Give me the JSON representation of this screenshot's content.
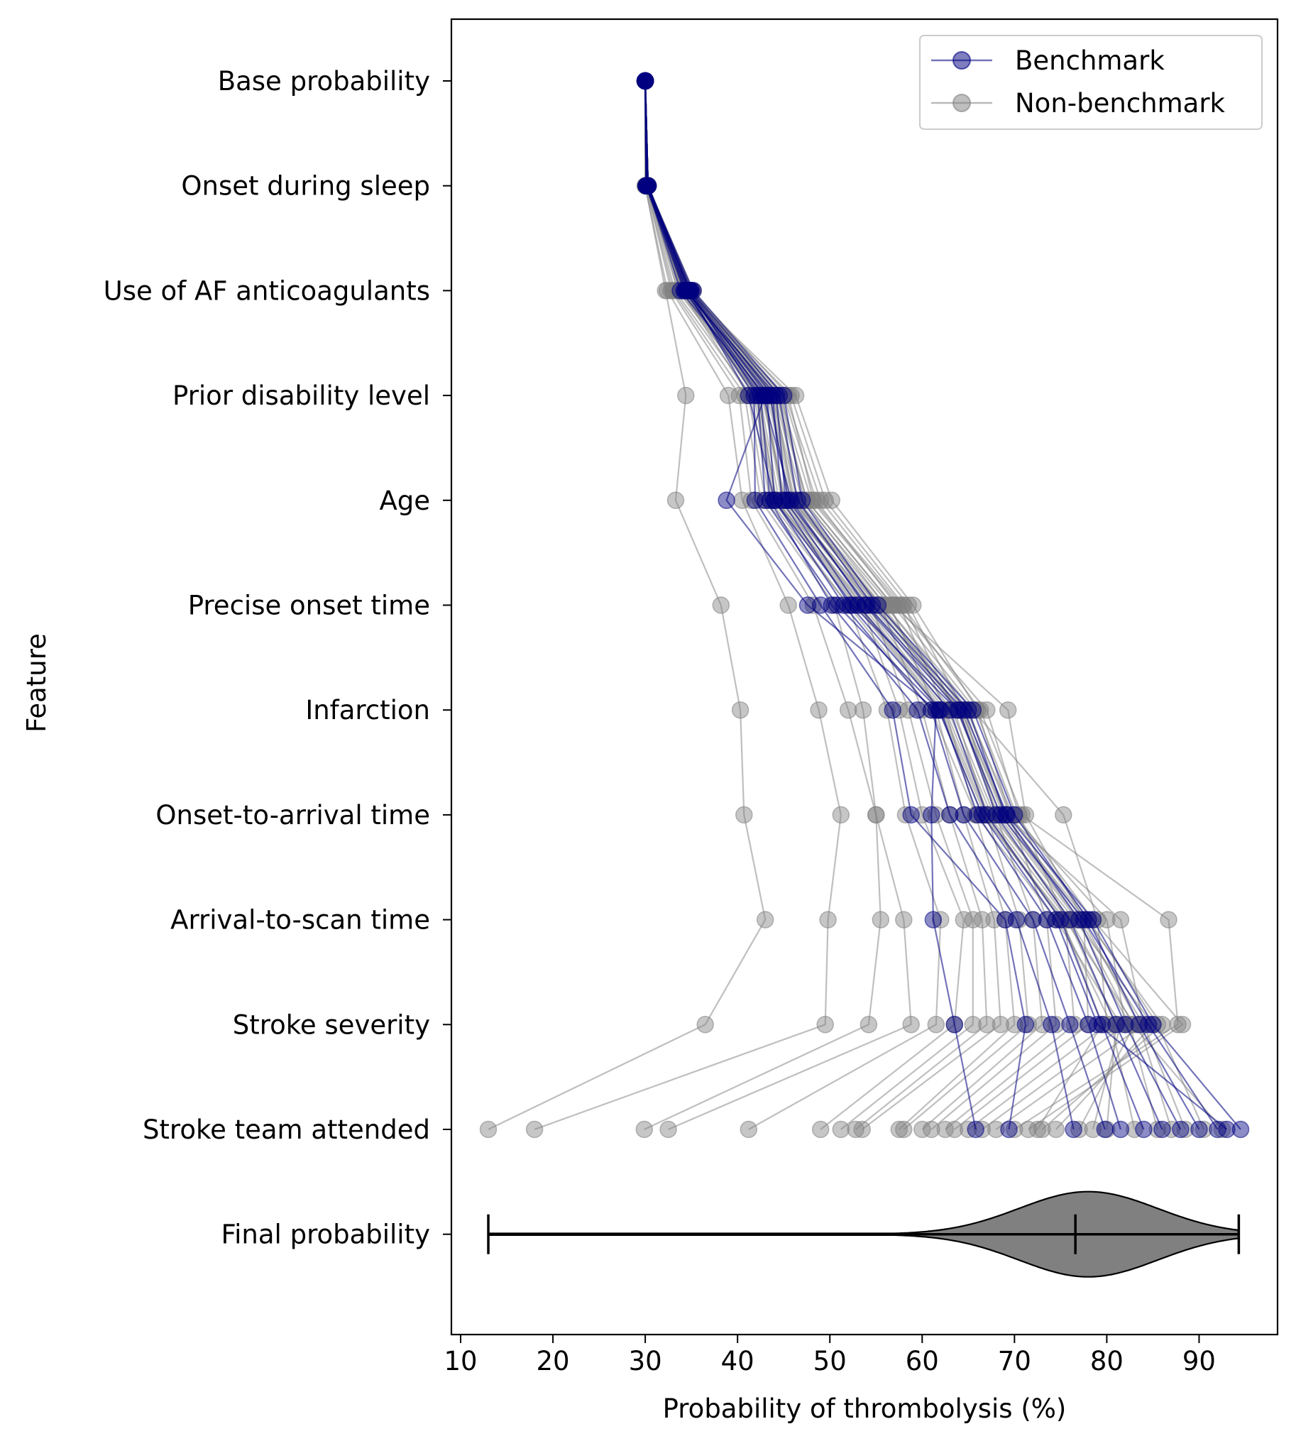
{
  "chart_data": {
    "type": "line",
    "title": "",
    "xlabel": "Probability of thrombolysis (%)",
    "ylabel": "Feature",
    "xlim": [
      9,
      98.5
    ],
    "xticks": [
      10,
      20,
      30,
      40,
      50,
      60,
      70,
      80,
      90
    ],
    "grid": false,
    "legend_position": "top-right",
    "categories": [
      "Base probability",
      "Onset during sleep",
      "Use of AF anticoagulants",
      "Prior disability level",
      "Age",
      "Precise onset time",
      "Infarction",
      "Onset-to-arrival time",
      "Arrival-to-scan time",
      "Stroke severity",
      "Stroke team attended",
      "Final probability"
    ],
    "series": [
      {
        "name": "Benchmark",
        "color": "#000080",
        "marker": "circle",
        "paths": [
          [
            30.0,
            30.2,
            33.8,
            43.0,
            38.8,
            47.6,
            61.5,
            61.0,
            61.2,
            63.5,
            65.8
          ],
          [
            30.0,
            30.3,
            34.4,
            41.8,
            41.9,
            49.0,
            56.8,
            58.8,
            69.0,
            71.2,
            69.4
          ],
          [
            30.0,
            30.1,
            34.2,
            42.5,
            43.5,
            50.2,
            59.5,
            63.0,
            70.2,
            74.0,
            76.4
          ],
          [
            30.0,
            30.2,
            34.8,
            43.2,
            44.0,
            51.5,
            61.0,
            64.5,
            72.0,
            76.0,
            79.8
          ],
          [
            30.0,
            30.3,
            34.9,
            43.8,
            44.8,
            52.2,
            62.0,
            66.0,
            73.5,
            78.0,
            81.5
          ],
          [
            30.0,
            30.1,
            34.3,
            44.2,
            45.2,
            53.0,
            63.0,
            67.0,
            75.0,
            79.5,
            84.0
          ],
          [
            30.0,
            30.2,
            34.6,
            42.8,
            45.8,
            53.8,
            64.0,
            68.0,
            76.0,
            81.0,
            86.0
          ],
          [
            30.0,
            30.3,
            35.0,
            44.5,
            46.5,
            54.6,
            65.0,
            69.0,
            77.0,
            82.0,
            88.0
          ],
          [
            30.0,
            30.2,
            35.2,
            45.0,
            47.0,
            55.2,
            65.5,
            70.0,
            78.0,
            83.5,
            90.0
          ],
          [
            30.0,
            30.3,
            34.7,
            41.2,
            44.0,
            52.5,
            63.8,
            68.5,
            77.5,
            84.5,
            92.0
          ],
          [
            30.0,
            30.1,
            34.5,
            43.5,
            45.5,
            54.0,
            64.5,
            69.2,
            78.5,
            85.0,
            94.5
          ],
          [
            30.0,
            30.2,
            34.8,
            42.2,
            43.0,
            50.8,
            61.8,
            66.5,
            74.5,
            79.0,
            93.0
          ]
        ]
      },
      {
        "name": "Non-benchmark",
        "color": "#808080",
        "marker": "circle",
        "paths": [
          [
            30.0,
            30.0,
            32.2,
            34.4,
            33.3,
            38.2,
            40.3,
            40.7,
            43.0,
            36.5,
            13.0
          ],
          [
            30.0,
            30.0,
            32.4,
            39.0,
            40.5,
            45.5,
            48.8,
            51.2,
            49.8,
            49.5,
            18.0
          ],
          [
            30.0,
            30.1,
            32.8,
            40.2,
            41.5,
            48.2,
            52.0,
            55.0,
            55.5,
            54.2,
            29.9
          ],
          [
            30.0,
            30.1,
            33.0,
            40.8,
            42.5,
            50.5,
            53.6,
            55.0,
            58.0,
            58.8,
            32.5
          ],
          [
            30.0,
            30.2,
            33.2,
            41.5,
            43.5,
            52.0,
            56.2,
            58.2,
            62.0,
            61.5,
            41.2
          ],
          [
            30.0,
            30.2,
            33.5,
            42.2,
            44.2,
            53.5,
            57.5,
            60.0,
            64.5,
            63.5,
            49.0
          ],
          [
            30.0,
            30.2,
            33.6,
            42.8,
            45.0,
            54.5,
            58.5,
            61.5,
            65.5,
            65.5,
            51.2
          ],
          [
            30.0,
            30.3,
            33.8,
            43.5,
            46.0,
            55.5,
            60.0,
            63.0,
            66.5,
            67.0,
            52.8
          ],
          [
            30.0,
            30.3,
            34.0,
            44.0,
            47.0,
            56.5,
            61.5,
            64.5,
            67.8,
            68.5,
            53.5
          ],
          [
            30.0,
            30.3,
            34.1,
            44.6,
            48.0,
            57.5,
            62.5,
            65.8,
            69.0,
            70.0,
            57.5
          ],
          [
            30.0,
            30.3,
            34.3,
            45.2,
            49.0,
            58.0,
            63.5,
            67.0,
            70.5,
            71.5,
            58.0
          ],
          [
            30.0,
            30.3,
            34.5,
            45.8,
            49.5,
            58.5,
            64.5,
            68.0,
            72.0,
            73.0,
            60.0
          ],
          [
            30.0,
            30.3,
            34.6,
            46.3,
            50.2,
            59.0,
            66.0,
            69.5,
            73.5,
            74.5,
            61.0
          ],
          [
            30.0,
            30.3,
            34.8,
            45.0,
            48.5,
            57.2,
            67.0,
            70.5,
            75.5,
            76.5,
            62.5
          ],
          [
            30.0,
            30.3,
            35.0,
            44.5,
            47.5,
            56.8,
            69.3,
            71.2,
            77.5,
            78.0,
            63.5
          ],
          [
            30.0,
            30.3,
            35.2,
            43.8,
            46.5,
            56.0,
            65.5,
            75.3,
            79.0,
            80.0,
            65.0
          ],
          [
            30.0,
            30.3,
            34.7,
            43.2,
            45.8,
            55.2,
            64.8,
            69.8,
            80.0,
            82.0,
            66.5
          ],
          [
            30.0,
            30.3,
            34.9,
            42.6,
            45.2,
            54.8,
            64.2,
            69.0,
            81.5,
            84.0,
            68.0
          ],
          [
            30.0,
            30.3,
            35.1,
            45.5,
            48.2,
            57.8,
            66.3,
            70.8,
            86.7,
            87.7,
            70.0
          ],
          [
            30.0,
            30.3,
            34.4,
            44.2,
            47.5,
            56.8,
            65.8,
            70.2,
            78.5,
            88.2,
            71.5
          ],
          [
            30.0,
            30.3,
            34.6,
            43.7,
            46.2,
            55.4,
            64.2,
            68.8,
            77.8,
            86.0,
            73.0
          ],
          [
            30.0,
            30.3,
            34.2,
            42.4,
            44.5,
            53.8,
            62.8,
            67.5,
            76.5,
            85.0,
            74.5
          ],
          [
            30.0,
            30.3,
            34.0,
            41.8,
            43.8,
            52.8,
            61.8,
            66.5,
            75.5,
            83.0,
            77.0
          ],
          [
            30.0,
            30.3,
            33.9,
            41.2,
            43.0,
            52.0,
            61.0,
            65.8,
            74.5,
            81.5,
            78.5
          ],
          [
            30.0,
            30.3,
            34.3,
            42.0,
            44.0,
            53.0,
            62.0,
            66.8,
            75.0,
            80.5,
            83.0
          ],
          [
            30.0,
            30.3,
            34.5,
            43.0,
            45.0,
            54.2,
            63.2,
            67.8,
            76.0,
            82.5,
            85.5
          ],
          [
            30.0,
            30.3,
            34.8,
            44.0,
            46.0,
            55.0,
            64.0,
            68.5,
            77.0,
            84.0,
            88.5
          ],
          [
            30.0,
            30.3,
            35.0,
            44.8,
            47.2,
            56.0,
            65.0,
            69.5,
            78.0,
            85.5,
            90.5
          ],
          [
            30.0,
            30.3,
            34.6,
            43.5,
            45.5,
            54.5,
            63.8,
            68.2,
            76.8,
            82.8,
            92.5
          ],
          [
            30.0,
            30.3,
            34.4,
            42.8,
            44.8,
            53.5,
            62.5,
            67.2,
            75.8,
            81.0,
            80.0
          ],
          [
            30.0,
            30.3,
            34.2,
            42.2,
            44.2,
            53.2,
            62.2,
            67.0,
            75.2,
            79.5,
            72.5
          ],
          [
            30.0,
            30.3,
            34.9,
            44.4,
            46.4,
            55.6,
            64.6,
            69.0,
            77.4,
            83.5,
            87.0
          ]
        ]
      }
    ],
    "violin": {
      "category": "Final probability",
      "min": 13.0,
      "median": 76.6,
      "max": 94.3,
      "mode": 78.0,
      "color": "#808080"
    },
    "legend": [
      {
        "label": "Benchmark",
        "color": "#000080"
      },
      {
        "label": "Non-benchmark",
        "color": "#808080"
      }
    ]
  }
}
